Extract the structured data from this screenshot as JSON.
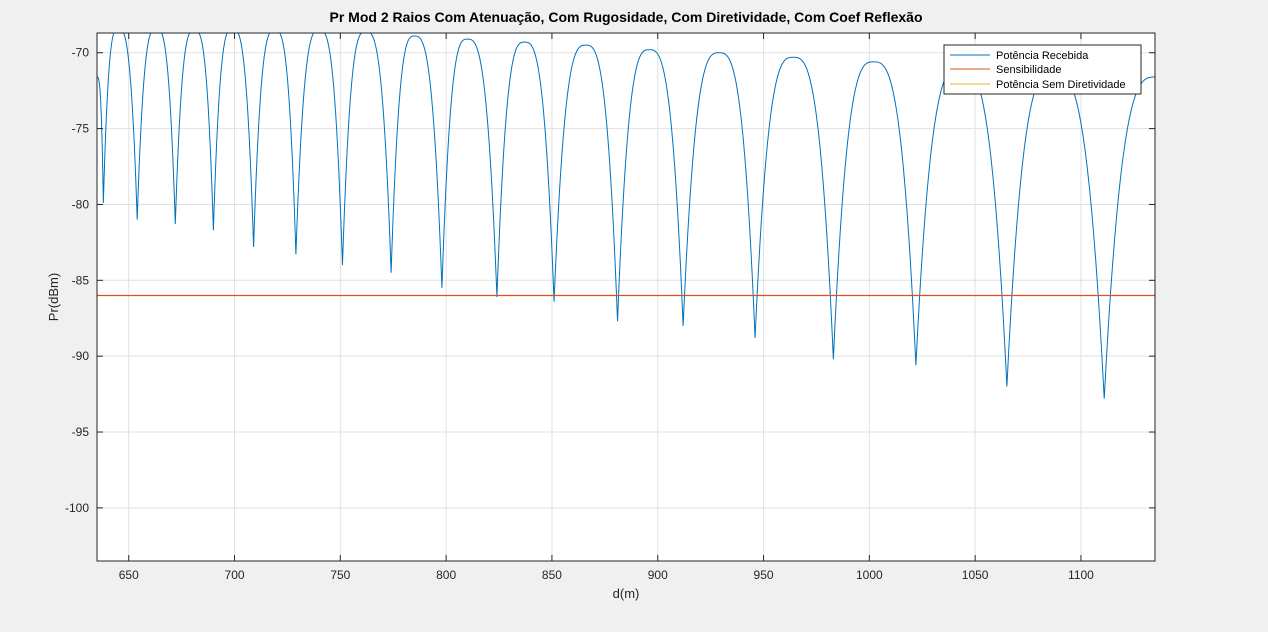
{
  "chart_data": {
    "type": "line",
    "title": "Pr Mod 2 Raios Com Atenuação, Com Rugosidade, Com Diretividade, Com Coef Reflexão",
    "xlabel": "d(m)",
    "ylabel": "Pr(dBm)",
    "xlim": [
      635,
      1135
    ],
    "ylim": [
      -103.5,
      -68.7
    ],
    "xticks": [
      650,
      700,
      750,
      800,
      850,
      900,
      950,
      1000,
      1050,
      1100
    ],
    "xtick_labels": [
      "650",
      "700",
      "750",
      "800",
      "850",
      "900",
      "950",
      "1000",
      "1050",
      "1100"
    ],
    "yticks": [
      -70,
      -75,
      -80,
      -85,
      -90,
      -95,
      -100
    ],
    "ytick_labels": [
      "-70",
      "-75",
      "-80",
      "-85",
      "-90",
      "-95",
      "-100"
    ],
    "grid": true,
    "legend_position": "top-right",
    "series": [
      {
        "name": "Potência Recebida",
        "color": "#0072bd",
        "peak_points": [
          {
            "x": 645,
            "y": -68.4
          },
          {
            "x": 663,
            "y": -68.4
          },
          {
            "x": 681,
            "y": -68.5
          },
          {
            "x": 699,
            "y": -68.4
          },
          {
            "x": 719,
            "y": -68.5
          },
          {
            "x": 740,
            "y": -68.5
          },
          {
            "x": 762,
            "y": -68.6
          },
          {
            "x": 785,
            "y": -68.9
          },
          {
            "x": 810,
            "y": -69.1
          },
          {
            "x": 837,
            "y": -69.3
          },
          {
            "x": 866,
            "y": -69.5
          },
          {
            "x": 896,
            "y": -69.8
          },
          {
            "x": 929,
            "y": -70.0
          },
          {
            "x": 964,
            "y": -70.3
          },
          {
            "x": 1002,
            "y": -70.6
          },
          {
            "x": 1043,
            "y": -70.9
          },
          {
            "x": 1087,
            "y": -71.2
          }
        ],
        "null_points": [
          {
            "x": 638,
            "y": -79.9
          },
          {
            "x": 654,
            "y": -81.0
          },
          {
            "x": 672,
            "y": -81.3
          },
          {
            "x": 690,
            "y": -81.7
          },
          {
            "x": 709,
            "y": -82.8
          },
          {
            "x": 729,
            "y": -83.3
          },
          {
            "x": 751,
            "y": -84.0
          },
          {
            "x": 774,
            "y": -84.5
          },
          {
            "x": 798,
            "y": -85.5
          },
          {
            "x": 824,
            "y": -86.1
          },
          {
            "x": 851,
            "y": -86.4
          },
          {
            "x": 881,
            "y": -87.7
          },
          {
            "x": 912,
            "y": -88.0
          },
          {
            "x": 946,
            "y": -88.8
          },
          {
            "x": 983,
            "y": -90.2
          },
          {
            "x": 1022,
            "y": -90.6
          },
          {
            "x": 1065,
            "y": -92.0
          },
          {
            "x": 1111,
            "y": -92.8
          }
        ],
        "start": {
          "x": 635,
          "y": -71.6
        },
        "end": {
          "x": 1135,
          "y": -71.6
        }
      },
      {
        "name": "Sensibilidade",
        "color": "#d95319",
        "value": -86
      },
      {
        "name": "Potência Sem Diretividade",
        "color": "#edb120",
        "values": []
      }
    ]
  }
}
